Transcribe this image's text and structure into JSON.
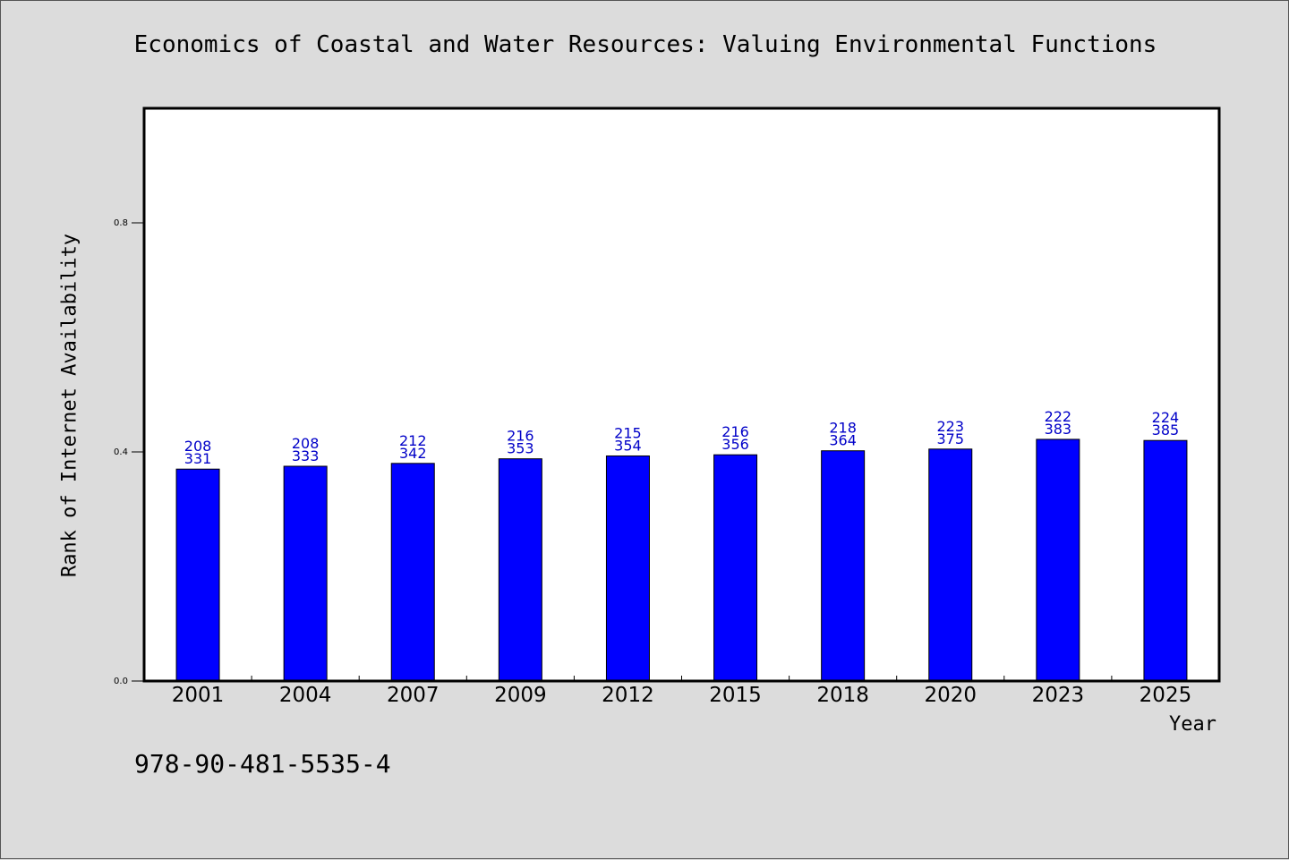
{
  "chart_data": {
    "type": "bar",
    "title": "Economics of Coastal and Water Resources: Valuing Environmental Functions",
    "xlabel": "Year",
    "ylabel": "Rank of Internet Availability",
    "categories": [
      "2001",
      "2004",
      "2007",
      "2009",
      "2012",
      "2015",
      "2018",
      "2020",
      "2023",
      "2025"
    ],
    "values": [
      0.37,
      0.375,
      0.38,
      0.388,
      0.393,
      0.395,
      0.402,
      0.405,
      0.422,
      0.42
    ],
    "top_labels": [
      "208",
      "208",
      "212",
      "216",
      "215",
      "216",
      "218",
      "223",
      "222",
      "224"
    ],
    "bottom_labels": [
      "331",
      "333",
      "342",
      "353",
      "354",
      "356",
      "364",
      "375",
      "383",
      "385"
    ],
    "ylim": [
      0,
      1.0
    ],
    "yticks": [
      "0.0",
      "0.4",
      "0.8"
    ],
    "bar_color": "#0000ff",
    "label_color": "#0000c8",
    "grid": false
  },
  "footer": {
    "isbn": "978-90-481-5535-4"
  }
}
